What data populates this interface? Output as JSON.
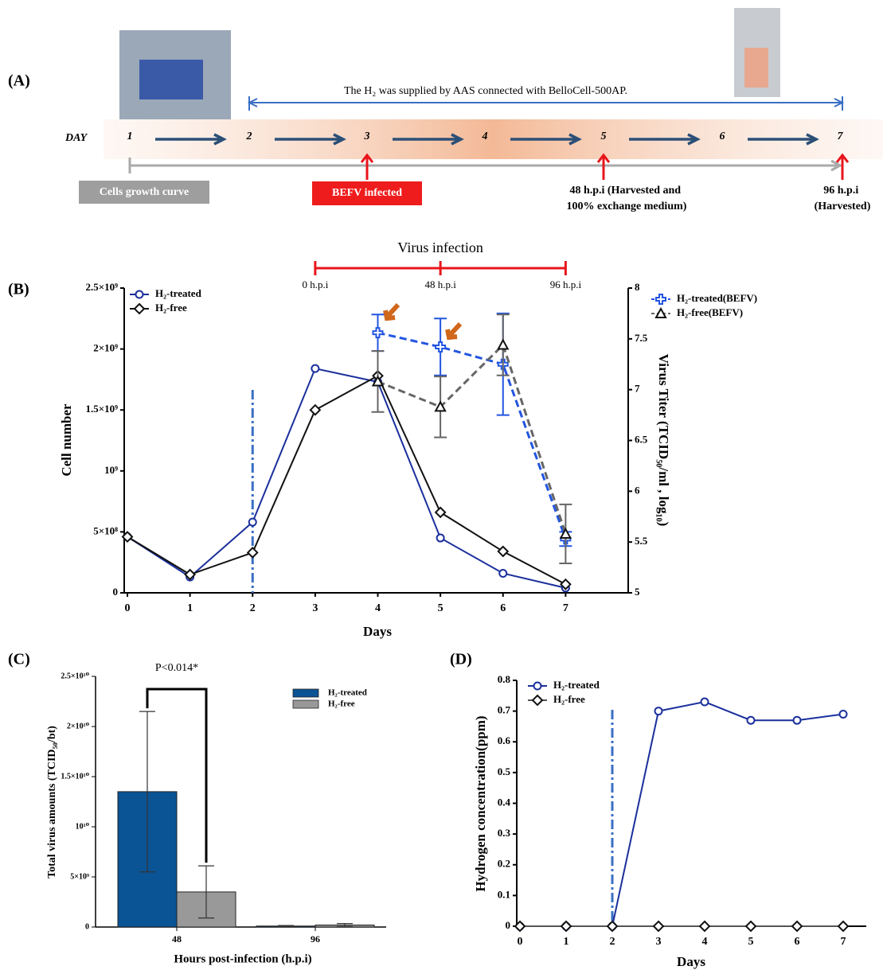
{
  "timeline": {
    "label": "(A)",
    "note": "The H₂ was supplied by AAS connected with BelloCell-500AP.",
    "day_label": "DAY",
    "days": [
      "1",
      "2",
      "3",
      "4",
      "5",
      "6",
      "7"
    ],
    "growth_label": "Cells growth curve",
    "infection_label": "BEFV infected",
    "harvest_48": [
      "48 h.p.i (Harvested and",
      "100% exchange medium)"
    ],
    "harvest_96": [
      "96 h.p.i",
      "(Harvested)"
    ]
  },
  "chart_data": [
    {
      "type": "line",
      "panel_label": "(B)",
      "annotation_title": "Virus infection",
      "annotation_labels": [
        "0 h.p.i",
        "48 h.p.i",
        "96 h.p.i"
      ],
      "annotation_x": [
        3,
        5,
        7
      ],
      "x": [
        0,
        1,
        2,
        3,
        4,
        5,
        6,
        7
      ],
      "xlim": [
        0,
        8
      ],
      "xticks": [
        0,
        1,
        2,
        3,
        4,
        5,
        6,
        7
      ],
      "xlabel": "Days",
      "ylabel": "Cell number",
      "y2label": "Virus Titer (TCID₅₀/ml , log₁₀)",
      "ylim": [
        0,
        2500000000
      ],
      "yticks": [
        0,
        {
          "value": 500000000,
          "label": "5×10⁸"
        },
        {
          "value": 1000000000,
          "label": "10⁹"
        },
        {
          "value": 1500000000,
          "label": "1.5×10⁹"
        },
        {
          "value": 2000000000,
          "label": "2×10⁹"
        },
        {
          "value": 2500000000,
          "label": "2.5×10⁹"
        }
      ],
      "y2lim": [
        5,
        8
      ],
      "y2ticks": [
        5,
        5.5,
        6,
        6.5,
        7,
        7.5,
        8
      ],
      "marker_x": 2,
      "series": [
        {
          "name": "H₂-treated",
          "color": "#1a2f9c",
          "marker": "circle",
          "values": [
            460000000,
            130000000,
            580000000,
            1840000000,
            1730000000,
            450000000,
            160000000,
            40000000
          ]
        },
        {
          "name": "H₂-free",
          "color": "#111111",
          "marker": "diamond",
          "values": [
            460000000,
            150000000,
            330000000,
            1500000000,
            1780000000,
            660000000,
            340000000,
            70000000
          ]
        },
        {
          "name": "H₂-treated(BEFV)",
          "color": "#2255e0",
          "marker": "plus",
          "dash": "dashed",
          "axis": "y2",
          "values": [
            null,
            null,
            null,
            null,
            7.56,
            7.42,
            7.25,
            5.53
          ],
          "errors": [
            null,
            null,
            null,
            null,
            0.18,
            0.28,
            0.5,
            0.07
          ]
        },
        {
          "name": "H₂-free(BEFV)",
          "color": "#666666",
          "marker": "triangle",
          "dash": "dashed",
          "axis": "y2",
          "values": [
            null,
            null,
            null,
            null,
            7.08,
            6.83,
            7.44,
            5.58
          ],
          "errors": [
            null,
            null,
            null,
            null,
            0.3,
            0.3,
            0.3,
            0.29
          ]
        }
      ]
    },
    {
      "type": "bar",
      "panel_label": "(C)",
      "annotation": "P<0.014*",
      "categories": [
        "48",
        "96"
      ],
      "xlabel": "Hours post-infection (h.p.i)",
      "ylabel": "Total virus amounts (TCID₅₀/bt)",
      "ylim": [
        0,
        25000000000
      ],
      "yticks": [
        0,
        {
          "value": 5000000000,
          "label": "5×10⁹"
        },
        {
          "value": 10000000000,
          "label": "10¹⁰"
        },
        {
          "value": 15000000000,
          "label": "1.5×10¹⁰"
        },
        {
          "value": 20000000000,
          "label": "2×10¹⁰"
        },
        {
          "value": 25000000000,
          "label": "2.5×10¹⁰"
        }
      ],
      "series": [
        {
          "name": "H₂-treated",
          "color": "#0a5394",
          "values": [
            13500000000,
            100000000
          ],
          "errors": [
            8000000000,
            50000000
          ]
        },
        {
          "name": "H₂-free",
          "color": "#999999",
          "values": [
            3500000000,
            200000000
          ],
          "errors": [
            2600000000,
            150000000
          ]
        }
      ]
    },
    {
      "type": "line",
      "panel_label": "(D)",
      "x": [
        0,
        1,
        2,
        3,
        4,
        5,
        6,
        7
      ],
      "xlim": [
        0,
        7.5
      ],
      "xticks": [
        0,
        1,
        2,
        3,
        4,
        5,
        6,
        7
      ],
      "xlabel": "Days",
      "ylabel": "Hydrogen concentration(ppm)",
      "ylim": [
        0,
        0.8
      ],
      "yticks": [
        0,
        0.1,
        0.2,
        0.3,
        0.4,
        0.5,
        0.6,
        0.7,
        0.8
      ],
      "marker_x": 2,
      "series": [
        {
          "name": "H₂-treated",
          "color": "#1a2f9c",
          "marker": "circle",
          "values": [
            0,
            0,
            0,
            0.7,
            0.73,
            0.67,
            0.67,
            0.69
          ]
        },
        {
          "name": "H₂-free",
          "color": "#555555",
          "marker": "diamond",
          "values": [
            0,
            0,
            0,
            0,
            0,
            0,
            0,
            0
          ]
        }
      ]
    }
  ]
}
